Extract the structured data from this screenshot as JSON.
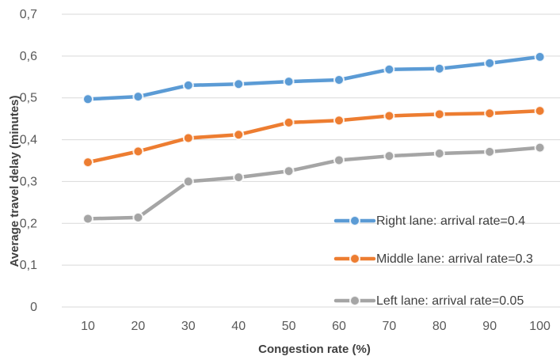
{
  "chart_data": {
    "type": "line",
    "title": "",
    "xlabel": "Congestion rate (%)",
    "ylabel": "Average travel delay (minutes)",
    "categories": [
      "10",
      "20",
      "30",
      "40",
      "50",
      "60",
      "70",
      "80",
      "90",
      "100"
    ],
    "ylim": [
      0,
      0.7
    ],
    "yticks": [
      "0",
      "0,1",
      "0,2",
      "0,3",
      "0,4",
      "0,5",
      "0,6",
      "0,7"
    ],
    "grid": true,
    "legend_position": "right",
    "series": [
      {
        "name": "Right lane: arrival rate=0.4",
        "color": "#5b9bd5",
        "values": [
          0.497,
          0.503,
          0.53,
          0.533,
          0.539,
          0.543,
          0.568,
          0.57,
          0.583,
          0.598
        ]
      },
      {
        "name": "Middle lane: arrival rate=0.3",
        "color": "#ed7d31",
        "values": [
          0.346,
          0.372,
          0.404,
          0.412,
          0.441,
          0.446,
          0.457,
          0.461,
          0.463,
          0.469
        ]
      },
      {
        "name": "Left lane: arrival rate=0.05",
        "color": "#a5a5a5",
        "values": [
          0.211,
          0.214,
          0.3,
          0.31,
          0.325,
          0.351,
          0.361,
          0.367,
          0.371,
          0.381
        ]
      }
    ]
  }
}
